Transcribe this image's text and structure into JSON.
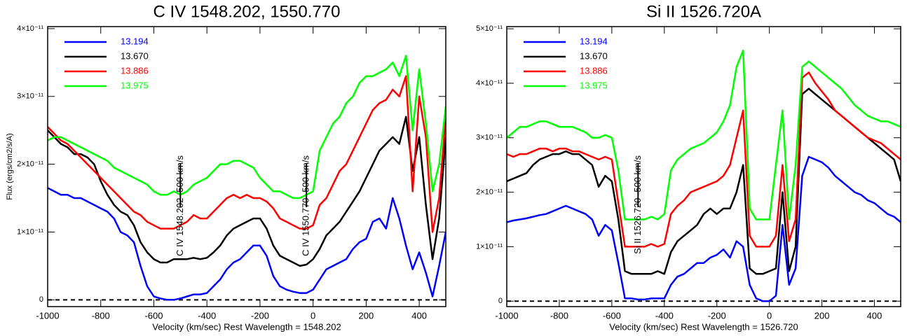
{
  "chart_data": [
    {
      "type": "line",
      "title": "C IV 1548.202, 1550.770",
      "x_label": "Velocity (km/sec)  Rest Wavelength = 1548.202",
      "y_label": "Flux (ergs/cm2/s/A)",
      "xlim": [
        -1000,
        500
      ],
      "xticks": [
        -1000,
        -800,
        -600,
        -400,
        -200,
        0,
        200,
        400
      ],
      "ylim": [
        -1e-12,
        4.03e-11
      ],
      "yticks": [
        0,
        {
          "value": 1e-11,
          "label": "1×10⁻¹¹"
        },
        {
          "value": 2e-11,
          "label": "2×10⁻¹¹"
        },
        {
          "value": 3e-11,
          "label": "3×10⁻¹¹"
        },
        {
          "value": 4e-11,
          "label": "4×10⁻¹¹"
        }
      ],
      "zero_line": true,
      "legend": "top-left",
      "annotations": [
        {
          "text": "C IV 1548.202 -500 km/s",
          "x": -500
        },
        {
          "text": "C IV 1550.770 -500 km/s",
          "x": -25
        }
      ],
      "x": [
        -1000,
        -975,
        -950,
        -925,
        -900,
        -875,
        -850,
        -825,
        -800,
        -775,
        -750,
        -725,
        -700,
        -675,
        -650,
        -625,
        -600,
        -575,
        -550,
        -525,
        -500,
        -475,
        -450,
        -425,
        -400,
        -375,
        -350,
        -325,
        -300,
        -275,
        -250,
        -225,
        -200,
        -175,
        -150,
        -125,
        -100,
        -75,
        -50,
        -25,
        0,
        25,
        50,
        75,
        100,
        125,
        150,
        175,
        200,
        225,
        250,
        275,
        300,
        325,
        350,
        375,
        400,
        425,
        450,
        475,
        500
      ],
      "series": [
        {
          "name": "13.194",
          "color": "#0000ff",
          "values": [
            1.65e-11,
            1.6e-11,
            1.55e-11,
            1.55e-11,
            1.5e-11,
            1.5e-11,
            1.45e-11,
            1.4e-11,
            1.35e-11,
            1.3e-11,
            1.2e-11,
            1e-11,
            9.5e-12,
            8.5e-12,
            5e-12,
            2e-12,
            5e-13,
            2e-13,
            0,
            0,
            2e-13,
            5e-13,
            8e-13,
            8e-13,
            1e-12,
            2e-12,
            3e-12,
            4.5e-12,
            5.5e-12,
            6e-12,
            7e-12,
            8e-12,
            8e-12,
            6.5e-12,
            3.5e-12,
            2e-12,
            1.5e-12,
            1.2e-12,
            1e-12,
            1e-12,
            1.5e-12,
            3e-12,
            4.5e-12,
            5e-12,
            5.5e-12,
            6e-12,
            7.5e-12,
            8.5e-12,
            9e-12,
            1.15e-11,
            1.2e-11,
            1.05e-11,
            1.5e-11,
            1.2e-11,
            8e-12,
            4.5e-12,
            7e-12,
            4e-12,
            5e-13,
            5e-12,
            1e-11
          ]
        },
        {
          "name": "13.670",
          "color": "#000000",
          "values": [
            2.5e-11,
            2.4e-11,
            2.3e-11,
            2.25e-11,
            2.15e-11,
            2.15e-11,
            2.1e-11,
            2e-11,
            1.75e-11,
            1.55e-11,
            1.4e-11,
            1.3e-11,
            1.25e-11,
            1.1e-11,
            8.5e-12,
            7e-12,
            6e-12,
            5.5e-12,
            5.5e-12,
            6e-12,
            6e-12,
            6e-12,
            6.2e-12,
            6e-12,
            6.2e-12,
            7e-12,
            8e-12,
            9.5e-12,
            1.05e-11,
            1.1e-11,
            1.15e-11,
            1.2e-11,
            1.2e-11,
            1.05e-11,
            8e-12,
            6.5e-12,
            6e-12,
            5.5e-12,
            5e-12,
            5.2e-12,
            6e-12,
            7.5e-12,
            9.5e-12,
            1.05e-11,
            1.15e-11,
            1.3e-11,
            1.45e-11,
            1.6e-11,
            1.8e-11,
            2e-11,
            2.2e-11,
            2.3e-11,
            2.4e-11,
            2.3e-11,
            2.7e-11,
            1.9e-11,
            2.4e-11,
            1.4e-11,
            6e-12,
            1.2e-11,
            2.4e-11
          ]
        },
        {
          "name": "13.886",
          "color": "#ff0000",
          "values": [
            2.55e-11,
            2.45e-11,
            2.35e-11,
            2.3e-11,
            2.2e-11,
            2.1e-11,
            2e-11,
            1.9e-11,
            1.8e-11,
            1.7e-11,
            1.6e-11,
            1.5e-11,
            1.4e-11,
            1.3e-11,
            1.25e-11,
            1.15e-11,
            1.1e-11,
            1.05e-11,
            1.05e-11,
            1.05e-11,
            1.1e-11,
            1.15e-11,
            1.25e-11,
            1.2e-11,
            1.2e-11,
            1.3e-11,
            1.4e-11,
            1.5e-11,
            1.55e-11,
            1.5e-11,
            1.55e-11,
            1.5e-11,
            1.5e-11,
            1.45e-11,
            1.35e-11,
            1.2e-11,
            1.15e-11,
            1.1e-11,
            1.05e-11,
            1.05e-11,
            1.1e-11,
            1.4e-11,
            1.5e-11,
            1.7e-11,
            1.9e-11,
            2e-11,
            2.2e-11,
            2.4e-11,
            2.6e-11,
            2.8e-11,
            2.9e-11,
            2.95e-11,
            3.1e-11,
            3e-11,
            3.3e-11,
            1.6e-11,
            3e-11,
            2.4e-11,
            1e-11,
            1.5e-11,
            2.7e-11
          ]
        },
        {
          "name": "13.975",
          "color": "#00ff00",
          "values": [
            2.35e-11,
            2.4e-11,
            2.4e-11,
            2.35e-11,
            2.3e-11,
            2.25e-11,
            2.2e-11,
            2.15e-11,
            2.1e-11,
            2.05e-11,
            1.95e-11,
            1.9e-11,
            1.85e-11,
            1.8e-11,
            1.75e-11,
            1.7e-11,
            1.6e-11,
            1.55e-11,
            1.55e-11,
            1.6e-11,
            1.55e-11,
            1.6e-11,
            1.7e-11,
            1.75e-11,
            1.8e-11,
            1.9e-11,
            2e-11,
            2e-11,
            2.05e-11,
            2.05e-11,
            2e-11,
            1.95e-11,
            1.8e-11,
            1.7e-11,
            1.6e-11,
            1.6e-11,
            1.55e-11,
            1.5e-11,
            1.5e-11,
            1.55e-11,
            1.6e-11,
            2.2e-11,
            2.4e-11,
            2.6e-11,
            2.7e-11,
            2.9e-11,
            3e-11,
            3.2e-11,
            3.3e-11,
            3.3e-11,
            3.35e-11,
            3.4e-11,
            3.5e-11,
            3.3e-11,
            3.6e-11,
            2.5e-11,
            3.4e-11,
            2.6e-11,
            1.6e-11,
            2e-11,
            2.85e-11
          ]
        }
      ]
    },
    {
      "type": "line",
      "title": "Si II 1526.720A",
      "x_label": "Velocity (km/sec)  Rest Wavelength = 1526.720",
      "xlim": [
        -1000,
        500
      ],
      "xticks": [
        -1000,
        -800,
        -600,
        -400,
        -200,
        0,
        200,
        400
      ],
      "ylim": [
        -1e-12,
        5.04e-11
      ],
      "yticks": [
        0,
        {
          "value": 1e-11,
          "label": "1×10⁻¹¹"
        },
        {
          "value": 2e-11,
          "label": "2×10⁻¹¹"
        },
        {
          "value": 3e-11,
          "label": "3×10⁻¹¹"
        },
        {
          "value": 4e-11,
          "label": "4×10⁻¹¹"
        },
        {
          "value": 5e-11,
          "label": "5×10⁻¹¹"
        }
      ],
      "zero_line": true,
      "legend": "top-left",
      "annotations": [
        {
          "text": "Si II 1526.720 -500 km/s",
          "x": -500
        }
      ],
      "x": [
        -1000,
        -975,
        -950,
        -925,
        -900,
        -875,
        -850,
        -825,
        -800,
        -775,
        -750,
        -725,
        -700,
        -675,
        -650,
        -625,
        -600,
        -575,
        -550,
        -525,
        -500,
        -475,
        -450,
        -425,
        -400,
        -375,
        -350,
        -325,
        -300,
        -275,
        -250,
        -225,
        -200,
        -175,
        -150,
        -125,
        -100,
        -75,
        -50,
        -25,
        0,
        25,
        50,
        75,
        100,
        125,
        150,
        175,
        200,
        225,
        250,
        275,
        300,
        325,
        350,
        375,
        400,
        425,
        450,
        475,
        500
      ],
      "series": [
        {
          "name": "13.194",
          "color": "#0000ff",
          "values": [
            1.45e-11,
            1.48e-11,
            1.5e-11,
            1.52e-11,
            1.55e-11,
            1.58e-11,
            1.6e-11,
            1.65e-11,
            1.7e-11,
            1.75e-11,
            1.7e-11,
            1.65e-11,
            1.6e-11,
            1.5e-11,
            1.2e-11,
            1.4e-11,
            1.3e-11,
            7e-12,
            5e-13,
            5e-13,
            3e-13,
            3e-13,
            5e-13,
            5e-13,
            5e-13,
            3e-12,
            4.5e-12,
            5e-12,
            6e-12,
            7e-12,
            7e-12,
            8e-12,
            8.5e-12,
            9.5e-12,
            8e-12,
            1.1e-11,
            1e-11,
            3e-12,
            5e-13,
            0,
            0,
            1e-12,
            1.4e-11,
            3e-12,
            6e-12,
            2.3e-11,
            2.65e-11,
            2.6e-11,
            2.55e-11,
            2.45e-11,
            2.3e-11,
            2.2e-11,
            2.1e-11,
            2e-11,
            1.95e-11,
            1.85e-11,
            1.8e-11,
            1.7e-11,
            1.6e-11,
            1.55e-11,
            1.45e-11
          ]
        },
        {
          "name": "13.670",
          "color": "#000000",
          "values": [
            2.2e-11,
            2.25e-11,
            2.3e-11,
            2.35e-11,
            2.5e-11,
            2.6e-11,
            2.65e-11,
            2.7e-11,
            2.7e-11,
            2.75e-11,
            2.7e-11,
            2.7e-11,
            2.6e-11,
            2.5e-11,
            2.1e-11,
            2.3e-11,
            2.2e-11,
            1.5e-11,
            5.5e-12,
            5e-12,
            5e-12,
            5e-12,
            5e-12,
            5.5e-12,
            5e-12,
            9e-12,
            1.1e-11,
            1.2e-11,
            1.3e-11,
            1.4e-11,
            1.6e-11,
            1.7e-11,
            1.6e-11,
            1.7e-11,
            1.7e-11,
            2e-11,
            2.5e-11,
            6e-12,
            5e-12,
            5e-12,
            5.5e-12,
            6e-12,
            2e-11,
            5.5e-12,
            1e-11,
            3.8e-11,
            3.9e-11,
            3.8e-11,
            3.7e-11,
            3.6e-11,
            3.5e-11,
            3.4e-11,
            3.3e-11,
            3.2e-11,
            3.1e-11,
            3e-11,
            2.9e-11,
            2.8e-11,
            2.7e-11,
            2.6e-11,
            2.2e-11
          ]
        },
        {
          "name": "13.886",
          "color": "#ff0000",
          "values": [
            2.7e-11,
            2.65e-11,
            2.7e-11,
            2.7e-11,
            2.75e-11,
            2.8e-11,
            2.8e-11,
            2.75e-11,
            2.8e-11,
            2.8e-11,
            2.75e-11,
            2.75e-11,
            2.7e-11,
            2.65e-11,
            2.6e-11,
            2.65e-11,
            2.6e-11,
            1.8e-11,
            1e-11,
            1e-11,
            1e-11,
            1e-11,
            1.05e-11,
            1e-11,
            1.05e-11,
            1.6e-11,
            1.75e-11,
            1.85e-11,
            2e-11,
            2.05e-11,
            2.1e-11,
            2.15e-11,
            2.2e-11,
            2.3e-11,
            2.5e-11,
            3e-11,
            3.5e-11,
            1.2e-11,
            1e-11,
            1e-11,
            1e-11,
            1.2e-11,
            2.5e-11,
            1.1e-11,
            1.5e-11,
            4.1e-11,
            4.2e-11,
            4e-11,
            3.85e-11,
            3.7e-11,
            3.5e-11,
            3.4e-11,
            3.3e-11,
            3.2e-11,
            3.1e-11,
            3e-11,
            2.95e-11,
            2.9e-11,
            2.8e-11,
            2.7e-11,
            2.6e-11
          ]
        },
        {
          "name": "13.975",
          "color": "#00ff00",
          "values": [
            3e-11,
            3.1e-11,
            3.2e-11,
            3.2e-11,
            3.25e-11,
            3.3e-11,
            3.3e-11,
            3.25e-11,
            3.2e-11,
            3.2e-11,
            3.2e-11,
            3.15e-11,
            3.1e-11,
            3e-11,
            3e-11,
            3.05e-11,
            3e-11,
            2.4e-11,
            1.5e-11,
            1.5e-11,
            1.5e-11,
            1.5e-11,
            1.55e-11,
            1.5e-11,
            1.6e-11,
            2.4e-11,
            2.6e-11,
            2.7e-11,
            2.8e-11,
            2.85e-11,
            2.9e-11,
            3e-11,
            3.1e-11,
            3.3e-11,
            3.6e-11,
            4.3e-11,
            4.6e-11,
            1.7e-11,
            1.5e-11,
            1.5e-11,
            1.5e-11,
            2.5e-11,
            3.5e-11,
            1.5e-11,
            2.5e-11,
            4.3e-11,
            4.4e-11,
            4.3e-11,
            4.2e-11,
            4.1e-11,
            4e-11,
            3.9e-11,
            3.75e-11,
            3.6e-11,
            3.5e-11,
            3.4e-11,
            3.35e-11,
            3.3e-11,
            3.3e-11,
            3.25e-11,
            3.2e-11
          ]
        }
      ]
    }
  ]
}
